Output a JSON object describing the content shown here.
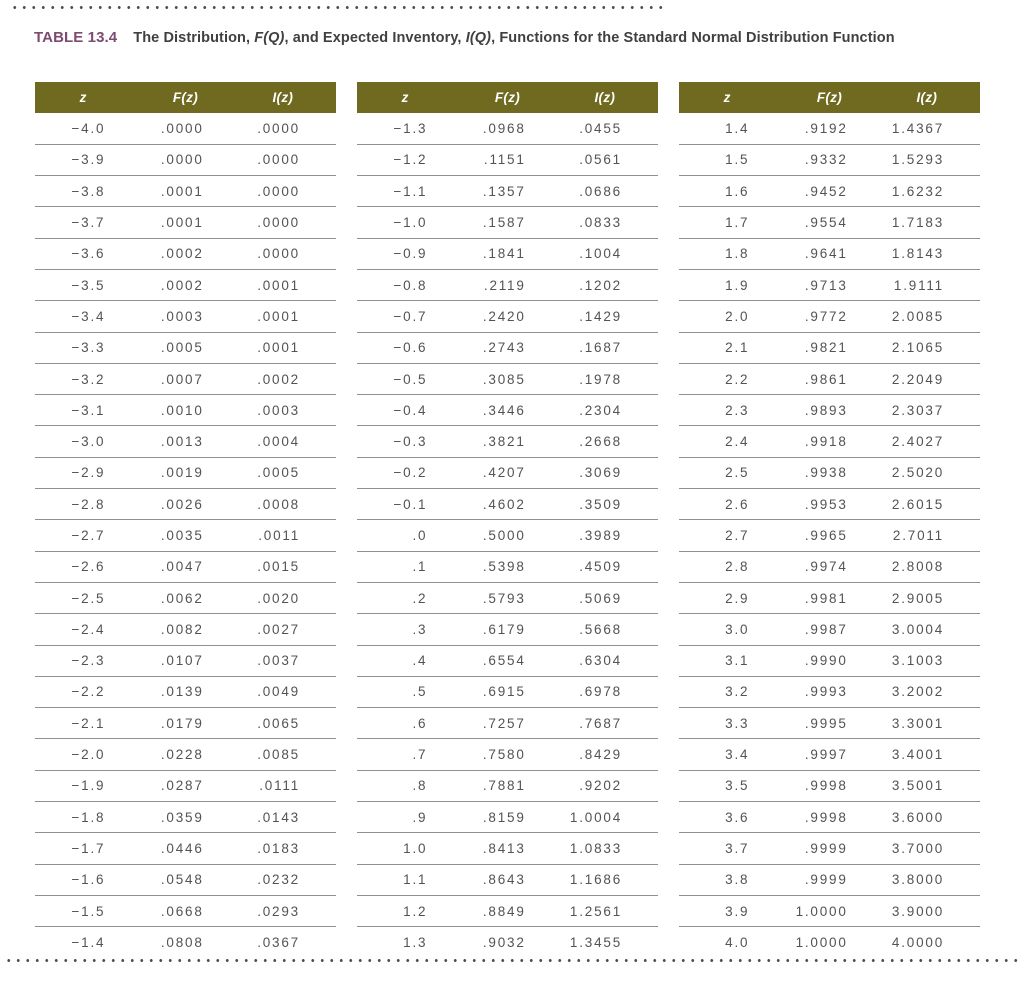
{
  "title": {
    "label": "TABLE 13.4",
    "part1": "The Distribution, ",
    "fq": "F(Q)",
    "part2": ", and Expected Inventory, ",
    "iq": "I(Q)",
    "part3": ", Functions for the Standard Normal Distribution Function"
  },
  "colors": {
    "header_bg": "#6F6A20",
    "title_accent": "#7D4A70",
    "body_text": "#525356",
    "separator": "#909090"
  },
  "col_headers": [
    "z",
    "F(z)",
    "I(z)"
  ],
  "tables": {
    "left": [
      [
        "−4.0",
        ".0000",
        ".0000"
      ],
      [
        "−3.9",
        ".0000",
        ".0000"
      ],
      [
        "−3.8",
        ".0001",
        ".0000"
      ],
      [
        "−3.7",
        ".0001",
        ".0000"
      ],
      [
        "−3.6",
        ".0002",
        ".0000"
      ],
      [
        "−3.5",
        ".0002",
        ".0001"
      ],
      [
        "−3.4",
        ".0003",
        ".0001"
      ],
      [
        "−3.3",
        ".0005",
        ".0001"
      ],
      [
        "−3.2",
        ".0007",
        ".0002"
      ],
      [
        "−3.1",
        ".0010",
        ".0003"
      ],
      [
        "−3.0",
        ".0013",
        ".0004"
      ],
      [
        "−2.9",
        ".0019",
        ".0005"
      ],
      [
        "−2.8",
        ".0026",
        ".0008"
      ],
      [
        "−2.7",
        ".0035",
        ".0011"
      ],
      [
        "−2.6",
        ".0047",
        ".0015"
      ],
      [
        "−2.5",
        ".0062",
        ".0020"
      ],
      [
        "−2.4",
        ".0082",
        ".0027"
      ],
      [
        "−2.3",
        ".0107",
        ".0037"
      ],
      [
        "−2.2",
        ".0139",
        ".0049"
      ],
      [
        "−2.1",
        ".0179",
        ".0065"
      ],
      [
        "−2.0",
        ".0228",
        ".0085"
      ],
      [
        "−1.9",
        ".0287",
        ".0111"
      ],
      [
        "−1.8",
        ".0359",
        ".0143"
      ],
      [
        "−1.7",
        ".0446",
        ".0183"
      ],
      [
        "−1.6",
        ".0548",
        ".0232"
      ],
      [
        "−1.5",
        ".0668",
        ".0293"
      ],
      [
        "−1.4",
        ".0808",
        ".0367"
      ]
    ],
    "middle": [
      [
        "−1.3",
        ".0968",
        ".0455"
      ],
      [
        "−1.2",
        ".1151",
        ".0561"
      ],
      [
        "−1.1",
        ".1357",
        ".0686"
      ],
      [
        "−1.0",
        ".1587",
        ".0833"
      ],
      [
        "−0.9",
        ".1841",
        ".1004"
      ],
      [
        "−0.8",
        ".2119",
        ".1202"
      ],
      [
        "−0.7",
        ".2420",
        ".1429"
      ],
      [
        "−0.6",
        ".2743",
        ".1687"
      ],
      [
        "−0.5",
        ".3085",
        ".1978"
      ],
      [
        "−0.4",
        ".3446",
        ".2304"
      ],
      [
        "−0.3",
        ".3821",
        ".2668"
      ],
      [
        "−0.2",
        ".4207",
        ".3069"
      ],
      [
        "−0.1",
        ".4602",
        ".3509"
      ],
      [
        ".0",
        ".5000",
        ".3989"
      ],
      [
        ".1",
        ".5398",
        ".4509"
      ],
      [
        ".2",
        ".5793",
        ".5069"
      ],
      [
        ".3",
        ".6179",
        ".5668"
      ],
      [
        ".4",
        ".6554",
        ".6304"
      ],
      [
        ".5",
        ".6915",
        ".6978"
      ],
      [
        ".6",
        ".7257",
        ".7687"
      ],
      [
        ".7",
        ".7580",
        ".8429"
      ],
      [
        ".8",
        ".7881",
        ".9202"
      ],
      [
        ".9",
        ".8159",
        "1.0004"
      ],
      [
        "1.0",
        ".8413",
        "1.0833"
      ],
      [
        "1.1",
        ".8643",
        "1.1686"
      ],
      [
        "1.2",
        ".8849",
        "1.2561"
      ],
      [
        "1.3",
        ".9032",
        "1.3455"
      ]
    ],
    "right": [
      [
        "1.4",
        ".9192",
        "1.4367"
      ],
      [
        "1.5",
        ".9332",
        "1.5293"
      ],
      [
        "1.6",
        ".9452",
        "1.6232"
      ],
      [
        "1.7",
        ".9554",
        "1.7183"
      ],
      [
        "1.8",
        ".9641",
        "1.8143"
      ],
      [
        "1.9",
        ".9713",
        "1.9111"
      ],
      [
        "2.0",
        ".9772",
        "2.0085"
      ],
      [
        "2.1",
        ".9821",
        "2.1065"
      ],
      [
        "2.2",
        ".9861",
        "2.2049"
      ],
      [
        "2.3",
        ".9893",
        "2.3037"
      ],
      [
        "2.4",
        ".9918",
        "2.4027"
      ],
      [
        "2.5",
        ".9938",
        "2.5020"
      ],
      [
        "2.6",
        ".9953",
        "2.6015"
      ],
      [
        "2.7",
        ".9965",
        "2.7011"
      ],
      [
        "2.8",
        ".9974",
        "2.8008"
      ],
      [
        "2.9",
        ".9981",
        "2.9005"
      ],
      [
        "3.0",
        ".9987",
        "3.0004"
      ],
      [
        "3.1",
        ".9990",
        "3.1003"
      ],
      [
        "3.2",
        ".9993",
        "3.2002"
      ],
      [
        "3.3",
        ".9995",
        "3.3001"
      ],
      [
        "3.4",
        ".9997",
        "3.4001"
      ],
      [
        "3.5",
        ".9998",
        "3.5001"
      ],
      [
        "3.6",
        ".9998",
        "3.6000"
      ],
      [
        "3.7",
        ".9999",
        "3.7000"
      ],
      [
        "3.8",
        ".9999",
        "3.8000"
      ],
      [
        "3.9",
        "1.0000",
        "3.9000"
      ],
      [
        "4.0",
        "1.0000",
        "4.0000"
      ]
    ]
  }
}
